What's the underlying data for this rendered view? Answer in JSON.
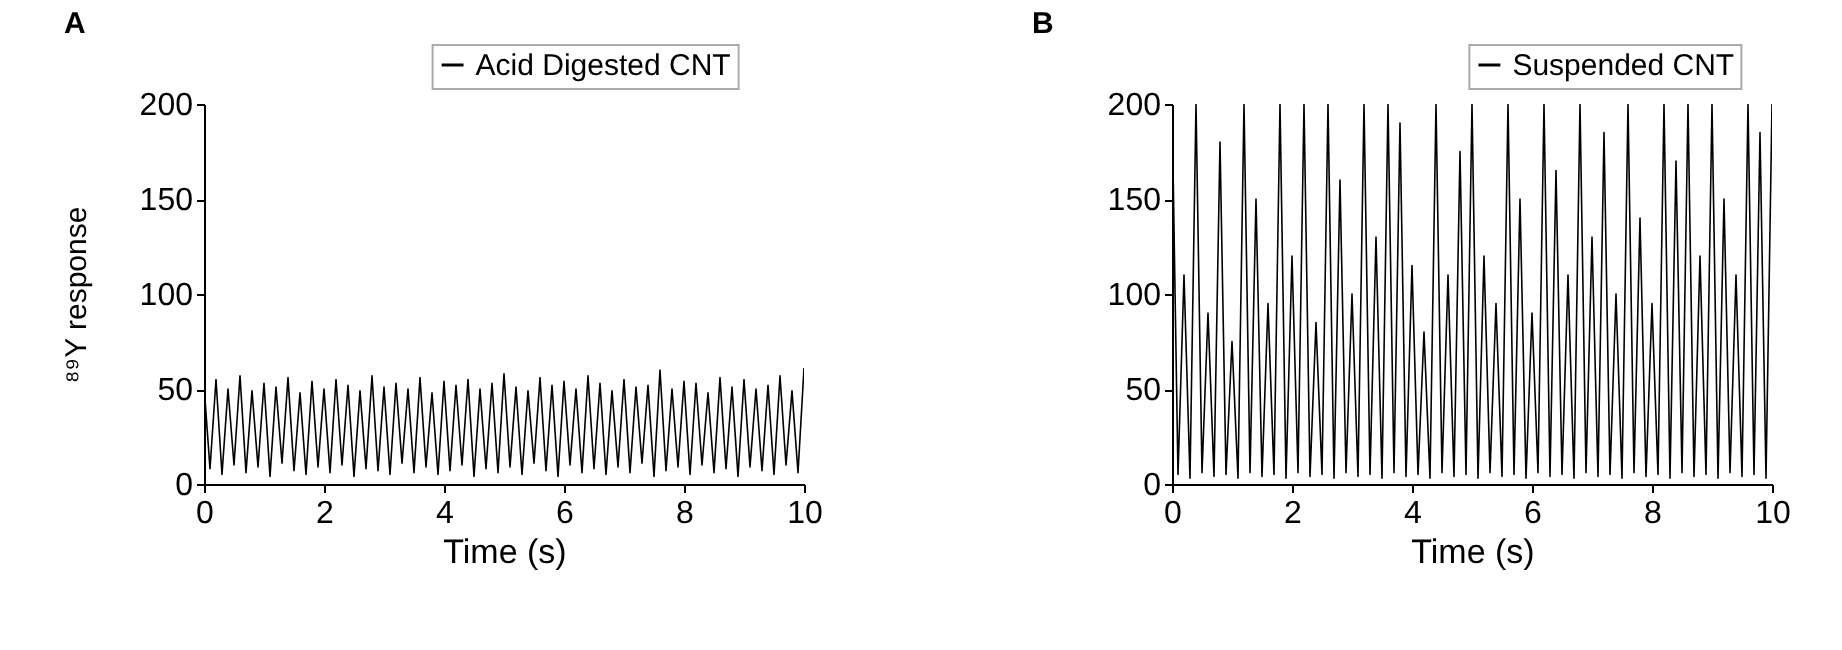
{
  "chart_data": [
    {
      "type": "line",
      "title": "A",
      "xlabel": "Time (s)",
      "ylabel": "⁸⁹Y response",
      "legend": "top right",
      "grid": false,
      "x": [
        0,
        0.1,
        0.2,
        0.3,
        0.4,
        0.5,
        0.6,
        0.7,
        0.8,
        0.9,
        1,
        1.1,
        1.2,
        1.3,
        1.4,
        1.5,
        1.6,
        1.7,
        1.8,
        1.9,
        2,
        2.1,
        2.2,
        2.3,
        2.4,
        2.5,
        2.6,
        2.7,
        2.8,
        2.9,
        3,
        3.1,
        3.2,
        3.3,
        3.4,
        3.5,
        3.6,
        3.7,
        3.8,
        3.9,
        4,
        4.1,
        4.2,
        4.3,
        4.4,
        4.5,
        4.6,
        4.7,
        4.8,
        4.9,
        5,
        5.1,
        5.2,
        5.3,
        5.4,
        5.5,
        5.6,
        5.7,
        5.8,
        5.9,
        6,
        6.1,
        6.2,
        6.3,
        6.4,
        6.5,
        6.6,
        6.7,
        6.8,
        6.9,
        7,
        7.1,
        7.2,
        7.3,
        7.4,
        7.5,
        7.6,
        7.7,
        7.8,
        7.9,
        8,
        8.1,
        8.2,
        8.3,
        8.4,
        8.5,
        8.6,
        8.7,
        8.8,
        8.9,
        9,
        9.1,
        9.2,
        9.3,
        9.4,
        9.5,
        9.6,
        9.7,
        9.8,
        9.9,
        10
      ],
      "series": [
        {
          "name": "Acid Digested CNT",
          "color": "#000000",
          "values": [
            52,
            8,
            55,
            5,
            50,
            10,
            57,
            6,
            49,
            9,
            53,
            4,
            51,
            11,
            56,
            7,
            48,
            5,
            54,
            9,
            50,
            6,
            55,
            10,
            52,
            4,
            49,
            8,
            57,
            7,
            51,
            5,
            53,
            11,
            50,
            6,
            56,
            9,
            48,
            5,
            54,
            7,
            52,
            10,
            55,
            4,
            50,
            8,
            53,
            6,
            58,
            9,
            51,
            5,
            49,
            11,
            56,
            7,
            52,
            4,
            54,
            10,
            50,
            6,
            57,
            8,
            53,
            5,
            49,
            9,
            55,
            6,
            51,
            11,
            52,
            4,
            60,
            7,
            50,
            9,
            54,
            5,
            53,
            10,
            48,
            6,
            56,
            8,
            51,
            4,
            55,
            9,
            50,
            7,
            52,
            5,
            57,
            10,
            49,
            6,
            61
          ]
        }
      ],
      "xlim": [
        0,
        10
      ],
      "xticks": [
        0,
        2,
        4,
        6,
        8,
        10
      ],
      "ylim": [
        0,
        200
      ],
      "yticks": [
        0,
        50,
        100,
        150,
        200
      ]
    },
    {
      "type": "line",
      "title": "B",
      "xlabel": "Time (s)",
      "legend": "top right",
      "grid": false,
      "x": [
        0,
        0.1,
        0.2,
        0.3,
        0.4,
        0.5,
        0.6,
        0.7,
        0.8,
        0.9,
        1,
        1.1,
        1.2,
        1.3,
        1.4,
        1.5,
        1.6,
        1.7,
        1.8,
        1.9,
        2,
        2.1,
        2.2,
        2.3,
        2.4,
        2.5,
        2.6,
        2.7,
        2.8,
        2.9,
        3,
        3.1,
        3.2,
        3.3,
        3.4,
        3.5,
        3.6,
        3.7,
        3.8,
        3.9,
        4,
        4.1,
        4.2,
        4.3,
        4.4,
        4.5,
        4.6,
        4.7,
        4.8,
        4.9,
        5,
        5.1,
        5.2,
        5.3,
        5.4,
        5.5,
        5.6,
        5.7,
        5.8,
        5.9,
        6,
        6.1,
        6.2,
        6.3,
        6.4,
        6.5,
        6.6,
        6.7,
        6.8,
        6.9,
        7,
        7.1,
        7.2,
        7.3,
        7.4,
        7.5,
        7.6,
        7.7,
        7.8,
        7.9,
        8,
        8.1,
        8.2,
        8.3,
        8.4,
        8.5,
        8.6,
        8.7,
        8.8,
        8.9,
        9,
        9.1,
        9.2,
        9.3,
        9.4,
        9.5,
        9.6,
        9.7,
        9.8,
        9.9,
        10
      ],
      "series": [
        {
          "name": "Suspended CNT",
          "color": "#000000",
          "values": [
            200,
            5,
            110,
            3,
            200,
            6,
            90,
            4,
            180,
            5,
            75,
            3,
            200,
            6,
            150,
            4,
            95,
            5,
            200,
            3,
            120,
            6,
            200,
            4,
            85,
            5,
            200,
            3,
            160,
            6,
            100,
            4,
            200,
            5,
            130,
            3,
            200,
            6,
            190,
            4,
            115,
            5,
            80,
            3,
            200,
            6,
            110,
            4,
            175,
            5,
            200,
            3,
            120,
            6,
            95,
            4,
            200,
            5,
            150,
            3,
            90,
            6,
            200,
            4,
            165,
            5,
            110,
            3,
            200,
            6,
            130,
            4,
            185,
            5,
            100,
            3,
            200,
            6,
            140,
            4,
            95,
            5,
            200,
            3,
            170,
            6,
            200,
            4,
            120,
            5,
            200,
            3,
            150,
            6,
            110,
            4,
            200,
            5,
            185,
            3,
            200
          ]
        }
      ],
      "xlim": [
        0,
        10
      ],
      "xticks": [
        0,
        2,
        4,
        6,
        8,
        10
      ],
      "ylim": [
        0,
        200
      ],
      "yticks": [
        0,
        50,
        100,
        150,
        200
      ]
    }
  ]
}
